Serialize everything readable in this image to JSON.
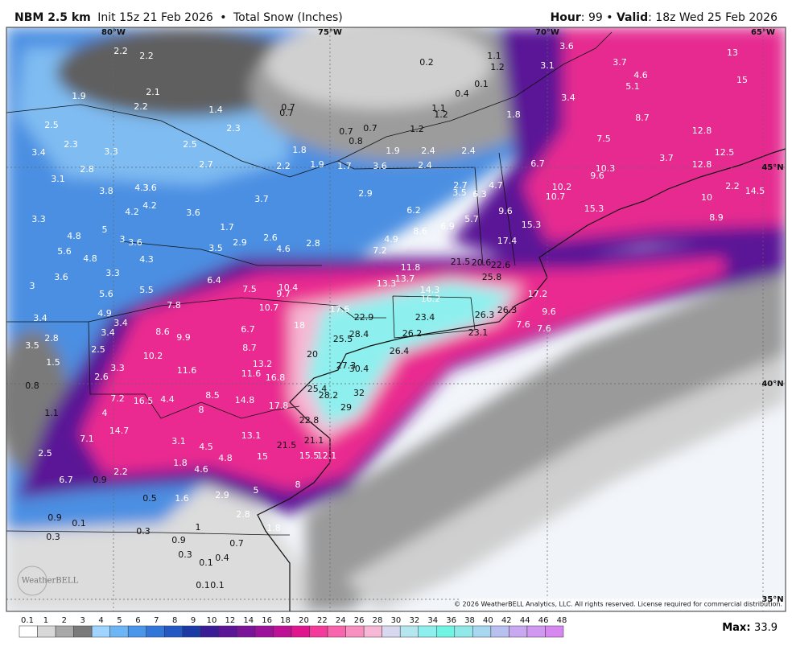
{
  "header": {
    "model": "NBM 2.5 km",
    "init": "Init 15z 21 Feb 2026",
    "separator": "•",
    "product": "Total Snow (Inches)",
    "hour_label": "Hour",
    "hour": 99,
    "valid_label": "Valid",
    "valid": "18z Wed 25 Feb 2026"
  },
  "map": {
    "meridians": [
      "80°W",
      "75°W",
      "70°W",
      "65°W"
    ],
    "parallels": [
      "45°N",
      "40°N",
      "35°N"
    ],
    "logo": "WeatherBELL",
    "copyright": "© 2026 WeatherBELL Analytics, LLC. All rights reserved. License required for commercial distribution.",
    "snow_totals": [
      2.2,
      2.2,
      1.9,
      2.2,
      2.1,
      1.4,
      0.7,
      0.7,
      2.3,
      2.5,
      2.3,
      3.3,
      3.4,
      2.5,
      2.7,
      2.8,
      3.1,
      3.8,
      4.3,
      3.6,
      4.2,
      4.2,
      3.6,
      3.3,
      5.0,
      4.8,
      3.0,
      3.6,
      5.6,
      4.8,
      4.3,
      3.3,
      3.0,
      3.6,
      1.7,
      2.9,
      3.5,
      2.6,
      4.6,
      2.8,
      3.7,
      2.2,
      1.8,
      1.9,
      1.7,
      0.7,
      0.8,
      0.7,
      1.9,
      1.2,
      2.4,
      2.4,
      1.1,
      1.2,
      0.4,
      0.1,
      0.2,
      1.1,
      1.2,
      3.1,
      3.6,
      3.7,
      4.6,
      5.1,
      13.0,
      15.0,
      3.4,
      1.8,
      8.7,
      12.8,
      7.5,
      12.5,
      3.7,
      12.8,
      10.3,
      9.6,
      6.7,
      4.7,
      3.6,
      2.4,
      2.9,
      2.7,
      3.5,
      6.3,
      10.2,
      10.7,
      10.0,
      14.5,
      2.2,
      8.9,
      6.2,
      5.7,
      9.6,
      15.3,
      15.3,
      8.6,
      6.9,
      4.9,
      7.2,
      17.4,
      21.5,
      20.6,
      22.6,
      11.8,
      13.7,
      13.3,
      25.8,
      17.2,
      14.3,
      16.2,
      17.6,
      22.9,
      23.4,
      26.3,
      26.3,
      9.6,
      7.6,
      7.6,
      6.4,
      7.5,
      10.4,
      9.7,
      10.7,
      5.6,
      5.5,
      7.8,
      4.9,
      3.4,
      3.4,
      18.0,
      28.4,
      26.2,
      23.1,
      8.6,
      9.9,
      6.7,
      8.7,
      25.5,
      26.4,
      20.0,
      3.4,
      2.8,
      3.5,
      2.5,
      10.2,
      1.5,
      13.2,
      27.3,
      30.4,
      11.6,
      11.6,
      16.8,
      2.6,
      3.3,
      0.8,
      25.4,
      32,
      28.2,
      8.5,
      14.8,
      7.2,
      16.5,
      4.4,
      17.8,
      29,
      8.0,
      1.1,
      4.0,
      22.8,
      14.7,
      13.1,
      21.1,
      7.1,
      3.1,
      4.5,
      21.5,
      2.5,
      4.8,
      15.0,
      15.5,
      12.1,
      1.8,
      4.6,
      2.2,
      0.9,
      6.7,
      8.0,
      5.0,
      2.9,
      0.5,
      1.6,
      2.8,
      0.9,
      0.1,
      1.0,
      1.8,
      0.3,
      0.3,
      0.9,
      0.7,
      0.3,
      0.1,
      0.4,
      0.1,
      0.1
    ]
  },
  "colorbar": {
    "levels": [
      0.1,
      1,
      2,
      3,
      4,
      5,
      6,
      7,
      8,
      9,
      10,
      12,
      14,
      16,
      18,
      20,
      22,
      24,
      26,
      28,
      30,
      32,
      34,
      36,
      38,
      40,
      42,
      44,
      46,
      48
    ],
    "colors": [
      "#ffffff",
      "#d8d8d8",
      "#a8a8a8",
      "#7a7a7a",
      "#9ed4ff",
      "#6cb6f6",
      "#4a96ea",
      "#3476d8",
      "#2458c2",
      "#1c3aa6",
      "#3a1c96",
      "#5a1696",
      "#7a1498",
      "#9c129a",
      "#be1296",
      "#e0168e",
      "#f43a9a",
      "#f865ac",
      "#f890c0",
      "#f6b8d4",
      "#d8d8ee",
      "#b4e6f0",
      "#8ef0ee",
      "#70f4e4",
      "#90e8e8",
      "#a8d8f0",
      "#b8c0f0",
      "#c8a8f0",
      "#d098f0",
      "#d688f0"
    ],
    "max_label": "Max",
    "max": 33.9
  }
}
